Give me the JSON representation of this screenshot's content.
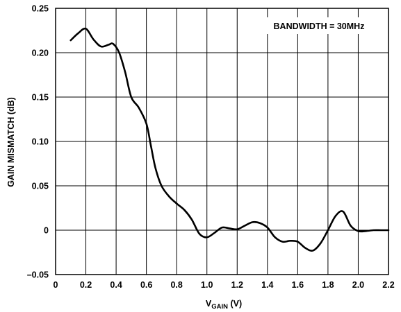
{
  "chart_data": {
    "type": "line",
    "title": "",
    "annotation": "BANDWIDTH = 30MHz",
    "xlabel_main": "V",
    "xlabel_sub": "GAIN",
    "xlabel_unit": " (V)",
    "ylabel": "GAIN MISMATCH (dB)",
    "xlim": [
      0,
      2.2
    ],
    "ylim": [
      -0.05,
      0.25
    ],
    "grid": true,
    "x_ticks": [
      0,
      0.2,
      0.4,
      0.6,
      0.8,
      1.0,
      1.2,
      1.4,
      1.6,
      1.8,
      2.0,
      2.2
    ],
    "x_tick_labels": [
      "0",
      "0.2",
      "0.4",
      "0.6",
      "0.8",
      "1.0",
      "1.2",
      "1.4",
      "1.6",
      "1.8",
      "2.0",
      "2.2"
    ],
    "y_ticks": [
      -0.05,
      0,
      0.05,
      0.1,
      0.15,
      0.2,
      0.25
    ],
    "y_tick_labels": [
      "–0.05",
      "0",
      "0.05",
      "0.10",
      "0.15",
      "0.20",
      "0.25"
    ],
    "series": [
      {
        "x": [
          0.1,
          0.15,
          0.2,
          0.25,
          0.3,
          0.35,
          0.38,
          0.42,
          0.46,
          0.5,
          0.55,
          0.6,
          0.63,
          0.66,
          0.7,
          0.75,
          0.8,
          0.85,
          0.9,
          0.95,
          1.0,
          1.05,
          1.1,
          1.15,
          1.2,
          1.25,
          1.3,
          1.35,
          1.4,
          1.45,
          1.5,
          1.55,
          1.6,
          1.65,
          1.7,
          1.75,
          1.8,
          1.85,
          1.9,
          1.95,
          2.0,
          2.05,
          2.1,
          2.15,
          2.2
        ],
        "y": [
          0.214,
          0.222,
          0.227,
          0.215,
          0.207,
          0.209,
          0.21,
          0.2,
          0.178,
          0.15,
          0.138,
          0.12,
          0.095,
          0.07,
          0.05,
          0.038,
          0.03,
          0.023,
          0.012,
          -0.004,
          -0.008,
          -0.003,
          0.003,
          0.002,
          0.001,
          0.005,
          0.009,
          0.008,
          0.003,
          -0.008,
          -0.013,
          -0.012,
          -0.013,
          -0.02,
          -0.023,
          -0.015,
          0.0,
          0.016,
          0.021,
          0.005,
          -0.001,
          -0.001,
          0.0,
          0.0,
          0.0
        ]
      }
    ]
  }
}
